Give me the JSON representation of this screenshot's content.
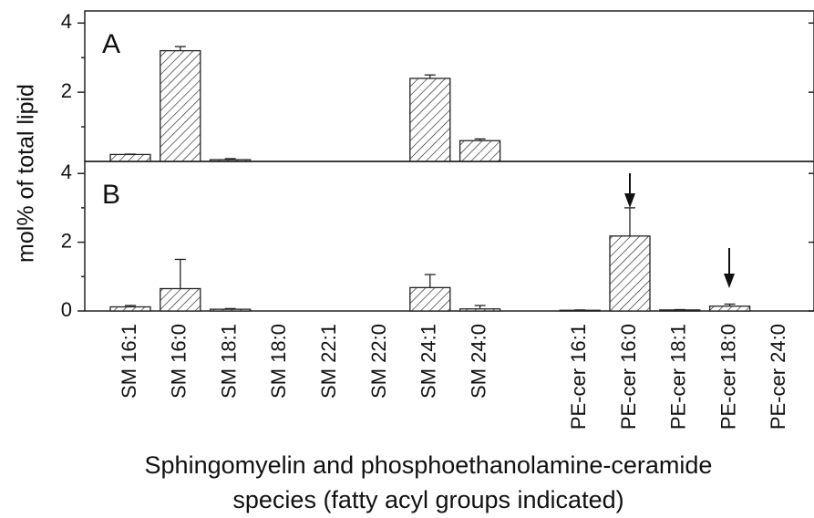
{
  "chart_data": [
    {
      "type": "bar",
      "label": "A",
      "ylabel": "mol% of total lipid",
      "values": [
        0.2,
        3.2,
        0.05,
        0,
        0,
        0,
        2.4,
        0.6,
        null,
        null,
        null,
        null,
        null,
        null
      ],
      "errors": [
        0.01,
        0.12,
        0.03,
        0,
        0,
        0,
        0.1,
        0.05,
        null,
        null,
        null,
        null,
        null,
        null
      ],
      "ylim": [
        0,
        4.35
      ],
      "yticks": [
        2,
        4
      ],
      "minor_yticks": [
        1,
        3
      ],
      "color": "#222"
    },
    {
      "type": "bar",
      "label": "B",
      "xlabel": [
        "Sphingomyelin and phosphoethanolamine-ceramide",
        "species (fatty acyl groups indicated)"
      ],
      "categories": [
        "SM 16:1",
        "SM 16:0",
        "SM 18:1",
        "SM 18:0",
        "SM 22:1",
        "SM 22:0",
        "SM 24:1",
        "SM 24:0",
        null,
        "PE-cer 16:1",
        "PE-cer 16:0",
        "PE-cer 18:1",
        "PE-cer 18:0",
        "PE-cer 24:0"
      ],
      "values": [
        0.12,
        0.65,
        0.05,
        0,
        0,
        0,
        0.68,
        0.06,
        null,
        0.02,
        2.18,
        0.03,
        0.14,
        0
      ],
      "errors": [
        0.04,
        0.85,
        0.02,
        0,
        0,
        0,
        0.38,
        0.1,
        null,
        0.01,
        0.82,
        0.01,
        0.06,
        0
      ],
      "ylim": [
        0,
        4.35
      ],
      "yticks": [
        0,
        2,
        4
      ],
      "minor_yticks": [
        1,
        3
      ],
      "color": "#222"
    }
  ]
}
